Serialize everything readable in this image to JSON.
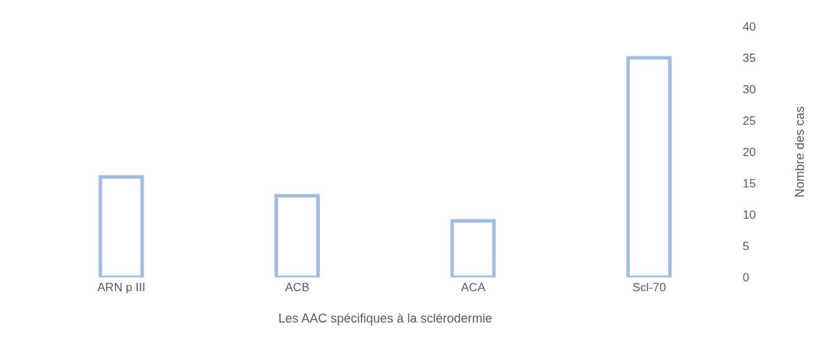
{
  "chart_data": {
    "type": "bar",
    "xlabel": "Les AAC spécifiques à la sclérodermie",
    "ylabel": "Nombre des cas",
    "categories": [
      "ARN p III",
      "ACB",
      "ACA",
      "Scl-70"
    ],
    "values": [
      16,
      13,
      9,
      35
    ],
    "color": "#9dbde3",
    "ylim": [
      0,
      40
    ],
    "yticks": [
      0,
      5,
      10,
      15,
      20,
      25,
      30,
      35,
      40
    ],
    "grid": false
  }
}
